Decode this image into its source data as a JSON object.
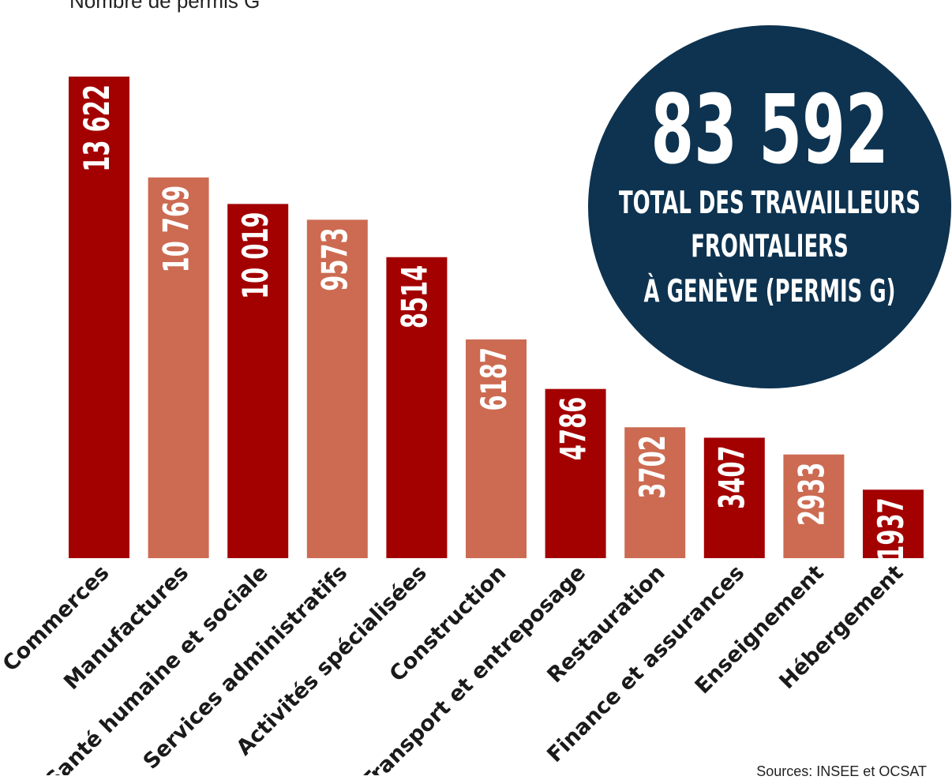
{
  "chart_data": {
    "type": "bar",
    "ylabel": "Nombre de permis G",
    "categories": [
      "Commerces",
      "Manufactures",
      "Santé humaine et sociale",
      "Services administratifs",
      "Activités spécialisées",
      "Construction",
      "Transport et entreposage",
      "Restauration",
      "Finance et assurances",
      "Enseignement",
      "Hébergement"
    ],
    "values": [
      13622,
      10769,
      10019,
      9573,
      8514,
      6187,
      4786,
      3702,
      3407,
      2933,
      1937
    ],
    "value_labels": [
      "13 622",
      "10 769",
      "10 019",
      "9573",
      "8514",
      "6187",
      "4786",
      "3702",
      "3407",
      "2933",
      "1937"
    ],
    "ylim": [
      0,
      13622
    ],
    "grid": false,
    "colors": {
      "dark": "#a30000",
      "light": "#cc6b52",
      "circle": "#0d3350"
    }
  },
  "callout": {
    "number": "83 592",
    "lines": [
      "TOTAL DES TRAVAILLEURS",
      "FRONTALIERS",
      "À GENÈVE (PERMIS G)"
    ]
  },
  "source": "Sources: INSEE et OCSAT"
}
